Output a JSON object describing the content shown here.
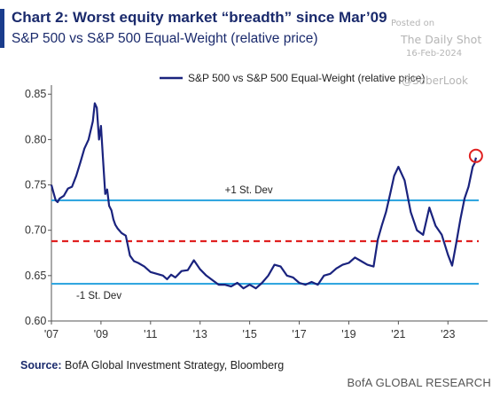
{
  "header": {
    "title": "Chart 2: Worst equity market “breadth” since Mar’09",
    "subtitle": "S&P 500 vs S&P 500 Equal-Weight (relative price)",
    "accent_color": "#1a3c8c"
  },
  "watermark": {
    "posted": "Posted on",
    "site": "The Daily Shot",
    "date": "16-Feb-2024",
    "handle": "@SoberLook"
  },
  "footer": {
    "source_label": "Source:",
    "source_text": "BofA Global Investment Strategy, Bloomberg",
    "credit": "BofA GLOBAL RESEARCH"
  },
  "chart_data": {
    "type": "line",
    "xlim": [
      2007.0,
      2024.6
    ],
    "ylim": [
      0.6,
      0.86
    ],
    "x_ticks": [
      {
        "value": 2007,
        "label": "'07"
      },
      {
        "value": 2009,
        "label": "'09"
      },
      {
        "value": 2011,
        "label": "'11"
      },
      {
        "value": 2013,
        "label": "'13"
      },
      {
        "value": 2015,
        "label": "'15"
      },
      {
        "value": 2017,
        "label": "'17"
      },
      {
        "value": 2019,
        "label": "'19"
      },
      {
        "value": 2021,
        "label": "'21"
      },
      {
        "value": 2023,
        "label": "'23"
      }
    ],
    "y_ticks": [
      {
        "value": 0.6,
        "label": "0.60"
      },
      {
        "value": 0.65,
        "label": "0.65"
      },
      {
        "value": 0.7,
        "label": "0.70"
      },
      {
        "value": 0.75,
        "label": "0.75"
      },
      {
        "value": 0.8,
        "label": "0.80"
      },
      {
        "value": 0.85,
        "label": "0.85"
      }
    ],
    "legend": {
      "label": "S&P 500 vs S&P 500 Equal-Weight (relative price)",
      "placement": "top-right"
    },
    "series": [
      {
        "name": "S&P 500 vs S&P 500 Equal-Weight (relative price)",
        "color": "#1a237e",
        "x": [
          2007.0,
          2007.08,
          2007.17,
          2007.25,
          2007.33,
          2007.5,
          2007.67,
          2007.83,
          2008.0,
          2008.17,
          2008.33,
          2008.5,
          2008.67,
          2008.75,
          2008.83,
          2008.92,
          2009.0,
          2009.08,
          2009.17,
          2009.25,
          2009.33,
          2009.42,
          2009.5,
          2009.58,
          2009.67,
          2009.83,
          2010.0,
          2010.17,
          2010.33,
          2010.5,
          2010.75,
          2011.0,
          2011.25,
          2011.5,
          2011.67,
          2011.83,
          2012.0,
          2012.25,
          2012.5,
          2012.75,
          2013.0,
          2013.25,
          2013.5,
          2013.75,
          2014.0,
          2014.25,
          2014.5,
          2014.75,
          2015.0,
          2015.25,
          2015.5,
          2015.75,
          2016.0,
          2016.25,
          2016.5,
          2016.75,
          2017.0,
          2017.25,
          2017.5,
          2017.75,
          2018.0,
          2018.25,
          2018.5,
          2018.75,
          2019.0,
          2019.25,
          2019.5,
          2019.75,
          2020.0,
          2020.17,
          2020.33,
          2020.5,
          2020.67,
          2020.83,
          2021.0,
          2021.25,
          2021.5,
          2021.75,
          2022.0,
          2022.25,
          2022.5,
          2022.75,
          2023.0,
          2023.17,
          2023.33,
          2023.5,
          2023.67,
          2023.83,
          2024.0,
          2024.08,
          2024.13
        ],
        "y": [
          0.75,
          0.742,
          0.733,
          0.731,
          0.735,
          0.738,
          0.746,
          0.748,
          0.76,
          0.775,
          0.79,
          0.8,
          0.82,
          0.84,
          0.835,
          0.8,
          0.815,
          0.78,
          0.74,
          0.745,
          0.727,
          0.722,
          0.712,
          0.706,
          0.702,
          0.697,
          0.694,
          0.672,
          0.666,
          0.664,
          0.66,
          0.654,
          0.652,
          0.65,
          0.646,
          0.651,
          0.648,
          0.655,
          0.656,
          0.667,
          0.657,
          0.65,
          0.645,
          0.64,
          0.64,
          0.638,
          0.642,
          0.636,
          0.64,
          0.636,
          0.642,
          0.65,
          0.662,
          0.66,
          0.65,
          0.648,
          0.642,
          0.64,
          0.643,
          0.64,
          0.65,
          0.652,
          0.658,
          0.662,
          0.664,
          0.67,
          0.666,
          0.662,
          0.66,
          0.69,
          0.705,
          0.72,
          0.74,
          0.76,
          0.77,
          0.755,
          0.72,
          0.7,
          0.695,
          0.725,
          0.705,
          0.695,
          0.673,
          0.661,
          0.685,
          0.712,
          0.735,
          0.748,
          0.77,
          0.774,
          0.78
        ]
      }
    ],
    "reference_lines": [
      {
        "name": "plus-one-std-line",
        "y": 0.733,
        "color": "#33a7e0",
        "dash": false,
        "label": "+1 St. Dev"
      },
      {
        "name": "mean-line",
        "y": 0.688,
        "color": "#e02020",
        "dash": true,
        "label": ""
      },
      {
        "name": "minus-one-std-line",
        "y": 0.641,
        "color": "#33a7e0",
        "dash": false,
        "label": "-1 St. Dev"
      }
    ],
    "highlight": {
      "x": 2024.13,
      "y": 0.782,
      "color": "#e02020"
    }
  }
}
